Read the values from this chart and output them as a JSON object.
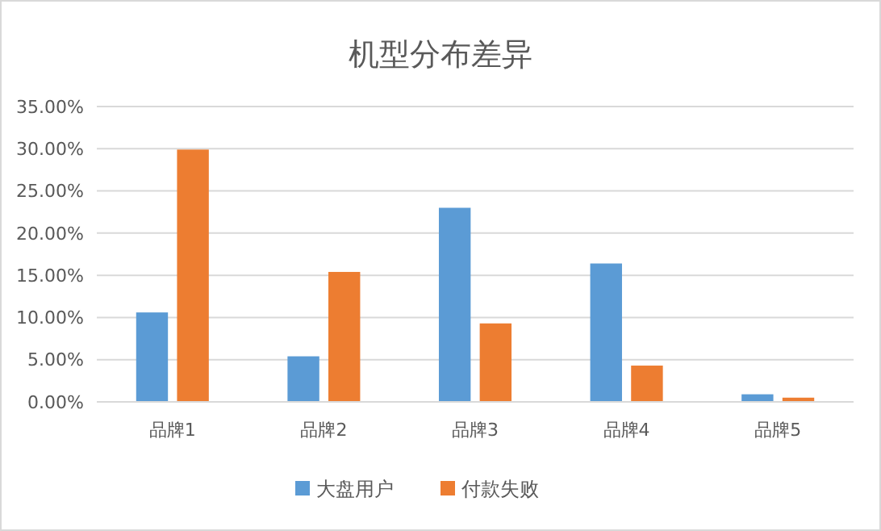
{
  "chart_data": {
    "type": "bar",
    "title": "机型分布差异",
    "categories": [
      "品牌1",
      "品牌2",
      "品牌3",
      "品牌4",
      "品牌5"
    ],
    "series": [
      {
        "name": "大盘用户",
        "color": "#5b9bd5",
        "values": [
          10.6,
          5.4,
          23.0,
          16.4,
          0.9
        ]
      },
      {
        "name": "付款失败",
        "color": "#ed7d31",
        "values": [
          29.9,
          15.4,
          9.3,
          4.3,
          0.5
        ]
      }
    ],
    "ylim": [
      0,
      35
    ],
    "yticks": [
      {
        "value": 0,
        "label": "0.00%"
      },
      {
        "value": 5,
        "label": "5.00%"
      },
      {
        "value": 10,
        "label": "10.00%"
      },
      {
        "value": 15,
        "label": "15.00%"
      },
      {
        "value": 20,
        "label": "20.00%"
      },
      {
        "value": 25,
        "label": "25.00%"
      },
      {
        "value": 30,
        "label": "30.00%"
      },
      {
        "value": 35,
        "label": "35.00%"
      }
    ],
    "grid": "y",
    "legend": "bottom"
  }
}
